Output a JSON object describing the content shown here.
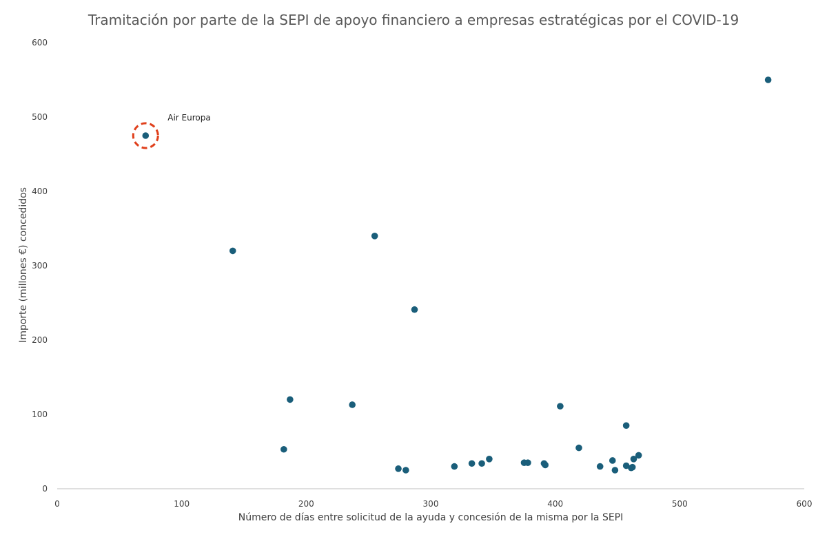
{
  "chart_data": {
    "type": "scatter",
    "title": "Tramitación por parte de la SEPI de apoyo financiero a empresas estratégicas por el COVID-19",
    "xlabel": "Número de días entre solicitud de la ayuda y concesión de la misma por la SEPI",
    "ylabel": "Importe (millones €) concedidos",
    "xlim": [
      0,
      600
    ],
    "ylim": [
      0,
      600
    ],
    "x_ticks": [
      0,
      100,
      200,
      300,
      400,
      500,
      600
    ],
    "y_ticks": [
      0,
      100,
      200,
      300,
      400,
      500,
      600
    ],
    "grid": false,
    "legend": "none",
    "marker_color": "#1a5e7a",
    "points": [
      {
        "x": 71,
        "y": 475
      },
      {
        "x": 141,
        "y": 320
      },
      {
        "x": 182,
        "y": 53
      },
      {
        "x": 187,
        "y": 120
      },
      {
        "x": 237,
        "y": 113
      },
      {
        "x": 255,
        "y": 340
      },
      {
        "x": 274,
        "y": 27
      },
      {
        "x": 280,
        "y": 25
      },
      {
        "x": 287,
        "y": 241
      },
      {
        "x": 319,
        "y": 30
      },
      {
        "x": 333,
        "y": 34
      },
      {
        "x": 341,
        "y": 34
      },
      {
        "x": 347,
        "y": 40
      },
      {
        "x": 375,
        "y": 35
      },
      {
        "x": 378,
        "y": 35
      },
      {
        "x": 391,
        "y": 34
      },
      {
        "x": 392,
        "y": 32
      },
      {
        "x": 404,
        "y": 111
      },
      {
        "x": 419,
        "y": 55
      },
      {
        "x": 436,
        "y": 30
      },
      {
        "x": 446,
        "y": 38
      },
      {
        "x": 448,
        "y": 25
      },
      {
        "x": 457,
        "y": 85
      },
      {
        "x": 457,
        "y": 31
      },
      {
        "x": 461,
        "y": 28
      },
      {
        "x": 462,
        "y": 29
      },
      {
        "x": 463,
        "y": 40
      },
      {
        "x": 467,
        "y": 45
      },
      {
        "x": 571,
        "y": 550
      }
    ],
    "annotations": [
      {
        "text": "Air Europa",
        "x": 71,
        "y": 475,
        "highlight": "dashed-circle",
        "highlight_color": "#e0401c"
      }
    ]
  }
}
